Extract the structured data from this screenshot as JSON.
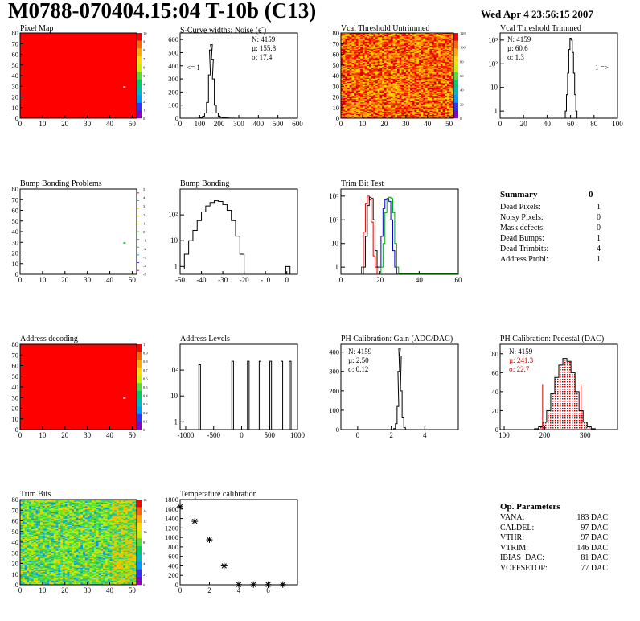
{
  "page": {
    "title": "M0788-070404.15:04 T-10b (C13)",
    "date": "Wed Apr  4 23:56:15 2007"
  },
  "panels": {
    "pixel_map": {
      "title": "Pixel Map"
    },
    "scurve": {
      "title": "S-Curve widths: Noise (e",
      "title_sup": "-",
      "title_end": ")",
      "stats": {
        "n": "N: 4159",
        "mu": "µ: 155.8",
        "sigma": "σ: 17.4"
      },
      "underflow": "<= 1"
    },
    "vcal_untrimmed": {
      "title": "Vcal Threshold Untrimmed"
    },
    "vcal_trimmed": {
      "title": "Vcal Threshold Trimmed",
      "stats": {
        "n": "N: 4159",
        "mu": "µ: 60.6",
        "sigma": "σ:  1.3"
      },
      "overflow": "1 =>"
    },
    "bump_problems": {
      "title": "Bump Bonding Problems"
    },
    "bump_bonding": {
      "title": "Bump Bonding"
    },
    "trim_bit_test": {
      "title": "Trim Bit Test"
    },
    "address_decoding": {
      "title": "Address decoding"
    },
    "address_levels": {
      "title": "Address Levels"
    },
    "ph_gain": {
      "title": "PH Calibration: Gain (ADC/DAC)",
      "stats": {
        "n": "N: 4159",
        "mu": "µ: 2.50",
        "sigma": "σ: 0.12"
      }
    },
    "ph_pedestal": {
      "title": "PH Calibration: Pedestal (DAC)",
      "stats": {
        "n": "N: 4159",
        "mu": "µ: 241.3",
        "sigma": "σ: 22.7"
      }
    },
    "trim_bits": {
      "title": "Trim Bits"
    },
    "temperature": {
      "title": "Temperature calibration"
    }
  },
  "summary": {
    "heading": "Summary",
    "value": "0",
    "rows": [
      {
        "label": "Dead Pixels:",
        "value": "1"
      },
      {
        "label": "Noisy Pixels:",
        "value": "0"
      },
      {
        "label": "Mask defects:",
        "value": "0"
      },
      {
        "label": "Dead Bumps:",
        "value": "1"
      },
      {
        "label": "Dead Trimbits:",
        "value": "4"
      },
      {
        "label": "Address Probl:",
        "value": "1"
      }
    ]
  },
  "op_parameters": {
    "heading": "Op. Parameters",
    "rows": [
      {
        "label": "VANA:",
        "value": "183 DAC"
      },
      {
        "label": "CALDEL:",
        "value": "97 DAC"
      },
      {
        "label": "VTHR:",
        "value": "97 DAC"
      },
      {
        "label": "VTRIM:",
        "value": "146 DAC"
      },
      {
        "label": "IBIAS_DAC:",
        "value": "81 DAC"
      },
      {
        "label": "VOFFSETOP:",
        "value": "77 DAC"
      }
    ]
  },
  "colors": {
    "map_red": "#ff0000",
    "trim_red": "#dd0000",
    "trim_blue": "#0000cc",
    "trim_green": "#00aa00",
    "pedestal_red": "#cc0000"
  },
  "chart_data": [
    {
      "id": "pixel_map",
      "type": "heatmap",
      "title": "Pixel Map",
      "xlim": [
        0,
        52
      ],
      "ylim": [
        0,
        80
      ],
      "xticks": [
        0,
        10,
        20,
        30,
        40,
        50
      ],
      "yticks": [
        0,
        10,
        20,
        30,
        40,
        50,
        60,
        70,
        80
      ],
      "fill": "uniform",
      "anomalies": [
        {
          "x": 46,
          "y": 30
        }
      ],
      "palette_ticks": [
        "0",
        "1",
        "2",
        "3",
        "4",
        "5",
        "6",
        "7",
        "8",
        "9",
        "10"
      ]
    },
    {
      "id": "scurve",
      "type": "line",
      "title": "S-Curve widths: Noise (e-)",
      "xlim": [
        0,
        600
      ],
      "xticks": [
        0,
        100,
        200,
        300,
        400,
        500,
        600
      ],
      "ylim": [
        0,
        650
      ],
      "yticks": [
        0,
        100,
        200,
        300,
        400,
        500,
        600
      ],
      "x": [
        90,
        100,
        110,
        120,
        130,
        140,
        150,
        155,
        160,
        165,
        170,
        180,
        190,
        200,
        210,
        220,
        240,
        260,
        280,
        300
      ],
      "y": [
        0,
        2,
        5,
        15,
        40,
        120,
        330,
        520,
        560,
        450,
        300,
        100,
        40,
        15,
        8,
        4,
        2,
        1,
        1,
        0
      ]
    },
    {
      "id": "vcal_untrimmed",
      "type": "heatmap",
      "title": "Vcal Threshold Untrimmed",
      "xlim": [
        0,
        52
      ],
      "ylim": [
        0,
        80
      ],
      "xticks": [
        0,
        10,
        20,
        30,
        40,
        50
      ],
      "yticks": [
        0,
        10,
        20,
        30,
        40,
        50,
        60,
        70,
        80
      ],
      "fill": "noisy-orange",
      "palette_ticks": [
        "0",
        "20",
        "40",
        "60",
        "80",
        "100",
        "120"
      ]
    },
    {
      "id": "vcal_trimmed",
      "type": "line",
      "title": "Vcal Threshold Trimmed",
      "log_y": true,
      "xlim": [
        0,
        100
      ],
      "xticks": [
        0,
        20,
        40,
        60,
        80,
        100
      ],
      "ylim": [
        0.5,
        2000
      ],
      "yticks": [
        "1",
        "10",
        "10²",
        "10³"
      ],
      "x": [
        56,
        57,
        58,
        59,
        60,
        61,
        62,
        63,
        64,
        65,
        66
      ],
      "y": [
        1,
        5,
        40,
        400,
        1200,
        1000,
        300,
        40,
        5,
        1,
        0
      ]
    },
    {
      "id": "bump_problems",
      "type": "heatmap",
      "title": "Bump Bonding Problems",
      "xlim": [
        0,
        52
      ],
      "ylim": [
        0,
        80
      ],
      "xticks": [
        0,
        10,
        20,
        30,
        40,
        50
      ],
      "yticks": [
        0,
        10,
        20,
        30,
        40,
        50,
        60,
        70,
        80
      ],
      "fill": "empty",
      "anomalies": [
        {
          "x": 46,
          "y": 30
        }
      ],
      "palette_ticks": [
        "-5",
        "-4",
        "-3",
        "-2",
        "-1",
        "0",
        "1",
        "2",
        "3",
        "4",
        "5"
      ]
    },
    {
      "id": "bump_bonding",
      "type": "line",
      "title": "Bump Bonding",
      "log_y": true,
      "xlim": [
        -50,
        5
      ],
      "xticks": [
        -50,
        -40,
        -30,
        -20,
        -10,
        0
      ],
      "ylim": [
        0.5,
        1000
      ],
      "yticks": [
        "1",
        "10",
        "10²"
      ],
      "x": [
        -49,
        -47,
        -45,
        -43,
        -41,
        -39,
        -37,
        -35,
        -33,
        -31,
        -29,
        -27,
        -25,
        -23,
        -21,
        -19,
        0
      ],
      "y": [
        0.8,
        3,
        10,
        25,
        60,
        130,
        220,
        300,
        350,
        330,
        250,
        150,
        60,
        15,
        3,
        0,
        1
      ]
    },
    {
      "id": "trim_bit_test",
      "type": "line",
      "title": "Trim Bit Test",
      "log_y": true,
      "xlim": [
        0,
        60
      ],
      "xticks": [
        0,
        20,
        40,
        60
      ],
      "ylim": [
        0.5,
        2000
      ],
      "yticks": [
        "1",
        "10",
        "10²",
        "10³"
      ],
      "series": [
        {
          "color": "red",
          "x": [
            11,
            12,
            13,
            14,
            15,
            16,
            17,
            18
          ],
          "y": [
            1,
            30,
            500,
            1000,
            700,
            80,
            3,
            1
          ]
        },
        {
          "color": "black",
          "x": [
            12,
            13,
            14,
            15,
            16,
            17,
            18,
            19
          ],
          "y": [
            1,
            20,
            400,
            900,
            800,
            100,
            5,
            1
          ]
        },
        {
          "color": "blue",
          "x": [
            20,
            21,
            22,
            23,
            24,
            25,
            26,
            27,
            28
          ],
          "y": [
            1,
            20,
            300,
            700,
            800,
            600,
            100,
            5,
            1
          ]
        },
        {
          "color": "green",
          "x": [
            21,
            22,
            23,
            24,
            25,
            26,
            27,
            28,
            29
          ],
          "y": [
            1,
            10,
            200,
            800,
            900,
            800,
            200,
            10,
            1
          ]
        }
      ]
    },
    {
      "id": "address_decoding",
      "type": "heatmap",
      "title": "Address decoding",
      "xlim": [
        0,
        52
      ],
      "ylim": [
        0,
        80
      ],
      "xticks": [
        0,
        10,
        20,
        30,
        40,
        50
      ],
      "yticks": [
        0,
        10,
        20,
        30,
        40,
        50,
        60,
        70,
        80
      ],
      "fill": "uniform",
      "anomalies": [
        {
          "x": 46,
          "y": 30
        }
      ],
      "palette_ticks": [
        "0",
        "0.1",
        "0.2",
        "0.3",
        "0.4",
        "0.5",
        "0.6",
        "0.7",
        "0.8",
        "0.9",
        "1"
      ]
    },
    {
      "id": "address_levels",
      "type": "line",
      "title": "Address Levels",
      "log_y": true,
      "xlim": [
        -1100,
        1000
      ],
      "xticks": [
        -1000,
        -500,
        0,
        500,
        1000
      ],
      "ylim": [
        0.5,
        1000
      ],
      "yticks": [
        "1",
        "10",
        "10²"
      ],
      "peaks": [
        -750,
        -160,
        120,
        330,
        520,
        720,
        870
      ]
    },
    {
      "id": "ph_gain",
      "type": "line",
      "title": "PH Calibration: Gain (ADC/DAC)",
      "xlim": [
        -1,
        6
      ],
      "xticks": [
        0,
        2,
        4
      ],
      "ylim": [
        0,
        440
      ],
      "yticks": [
        0,
        100,
        200,
        300,
        400
      ],
      "x": [
        2.1,
        2.2,
        2.3,
        2.4,
        2.45,
        2.5,
        2.55,
        2.6,
        2.7,
        2.8,
        2.9
      ],
      "y": [
        0,
        5,
        30,
        120,
        300,
        420,
        380,
        200,
        60,
        10,
        0
      ]
    },
    {
      "id": "ph_pedestal",
      "type": "line",
      "title": "PH Calibration: Pedestal (DAC)",
      "xlim": [
        90,
        380
      ],
      "xticks": [
        100,
        200,
        300
      ],
      "ylim": [
        0,
        90
      ],
      "yticks": [
        0,
        20,
        40,
        60,
        80
      ],
      "x": [
        180,
        190,
        200,
        210,
        220,
        230,
        240,
        250,
        260,
        270,
        280,
        290,
        300,
        310,
        320
      ],
      "y": [
        1,
        3,
        8,
        20,
        38,
        55,
        68,
        75,
        72,
        60,
        40,
        20,
        8,
        3,
        1
      ],
      "cut_lines": [
        195,
        290
      ]
    },
    {
      "id": "trim_bits",
      "type": "heatmap",
      "title": "Trim Bits",
      "xlim": [
        0,
        52
      ],
      "ylim": [
        0,
        80
      ],
      "xticks": [
        0,
        10,
        20,
        30,
        40,
        50
      ],
      "yticks": [
        0,
        10,
        20,
        30,
        40,
        50,
        60,
        70,
        80
      ],
      "fill": "noisy-green",
      "palette_ticks": [
        "0",
        "2",
        "4",
        "6",
        "8",
        "10",
        "12",
        "14",
        "16"
      ]
    },
    {
      "id": "temperature",
      "type": "scatter",
      "title": "Temperature calibration",
      "xlim": [
        0,
        8
      ],
      "xticks": [
        0,
        2,
        4,
        6
      ],
      "ylim": [
        0,
        1800
      ],
      "yticks": [
        0,
        200,
        400,
        600,
        800,
        1000,
        1200,
        1400,
        1600,
        1800
      ],
      "x": [
        0,
        1,
        2,
        3,
        4,
        5,
        6,
        7
      ],
      "y": [
        1650,
        1340,
        950,
        400,
        5,
        5,
        5,
        5
      ]
    }
  ]
}
